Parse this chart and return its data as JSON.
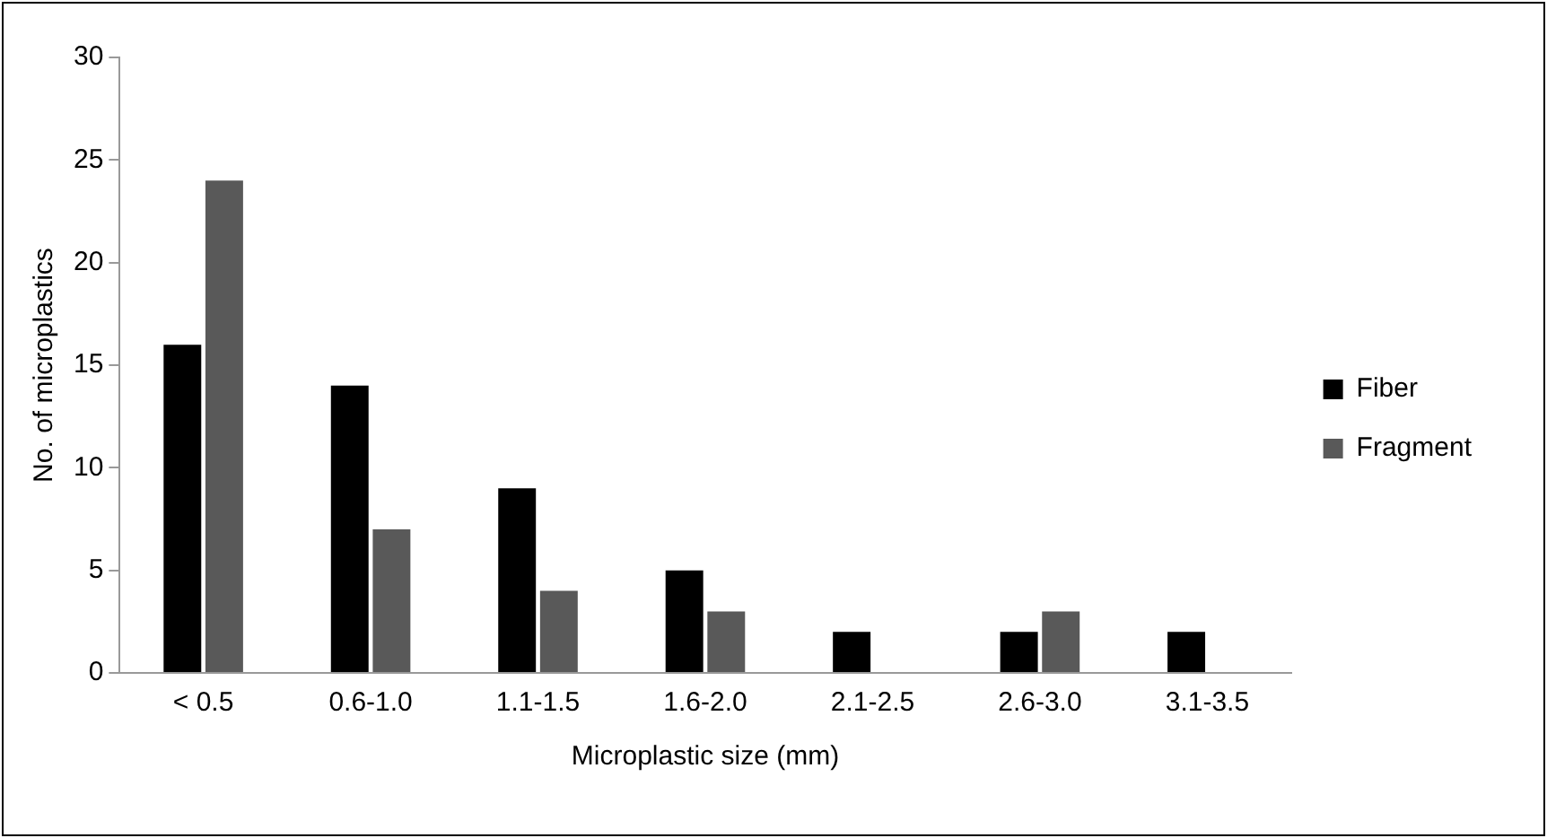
{
  "chart_data": {
    "type": "bar",
    "xlabel": "Microplastic size (mm)",
    "ylabel": "No. of microplastics",
    "categories": [
      "< 0.5",
      "0.6-1.0",
      "1.1-1.5",
      "1.6-2.0",
      "2.1-2.5",
      "2.6-3.0",
      "3.1-3.5"
    ],
    "series": [
      {
        "name": "Fiber",
        "color": "#000000",
        "values": [
          16,
          14,
          9,
          5,
          2,
          2,
          2
        ]
      },
      {
        "name": "Fragment",
        "color": "#595959",
        "values": [
          24,
          7,
          4,
          3,
          null,
          3,
          null
        ]
      }
    ],
    "ylim": [
      0,
      30
    ],
    "yticks": [
      0,
      5,
      10,
      15,
      20,
      25,
      30
    ],
    "grid": false,
    "legend": "right"
  }
}
